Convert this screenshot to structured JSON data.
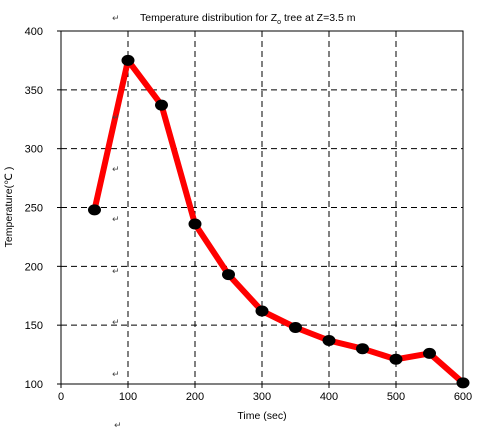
{
  "chart_data": {
    "type": "line",
    "title": "Temperature distribution for Z",
    "title_subscript": "o",
    "title_suffix": " tree at Z=3.5 m",
    "xlabel": "Time (sec)",
    "ylabel": "Temperature(℃  )",
    "xlim": [
      0,
      600
    ],
    "ylim": [
      100,
      400
    ],
    "xticks": [
      0,
      100,
      200,
      300,
      400,
      500,
      600
    ],
    "yticks": [
      100,
      150,
      200,
      250,
      300,
      350,
      400
    ],
    "grid": "dashed",
    "series": [
      {
        "color": "#ff0000",
        "marker_color": "#000000",
        "x": [
          50,
          100,
          150,
          200,
          250,
          300,
          350,
          400,
          450,
          500,
          550,
          600
        ],
        "y": [
          248,
          375,
          337,
          236,
          193,
          162,
          148,
          137,
          130,
          121,
          126,
          101
        ]
      }
    ],
    "annotation_glyph": "↵"
  }
}
